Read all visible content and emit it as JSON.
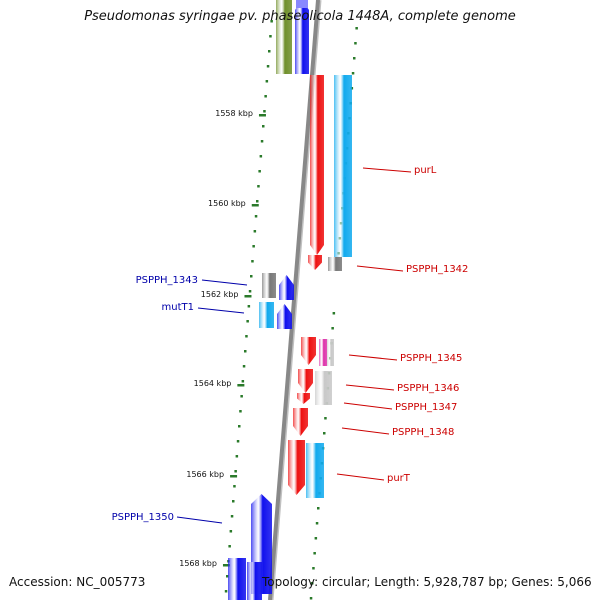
{
  "title": "Pseudomonas syringae pv. phaseolicola 1448A, complete genome",
  "footer": {
    "accession": "Accession: NC_005773",
    "topology": "Topology: circular; Length: 5,928,787 bp; Genes: 5,066"
  },
  "ruler": {
    "tick_labels": [
      "1558 kbp",
      "1560 kbp",
      "1562 kbp",
      "1564 kbp",
      "1566 kbp",
      "1568 kbp"
    ]
  },
  "colors": {
    "reverse_strand_label": "#cc0000",
    "forward_strand_label": "#0000aa",
    "backbone": "#888888",
    "tick": "#2a7a2a",
    "red_gene": "#ee1111",
    "blue_gene": "#1010ee",
    "cyan_gene": "#11aaee",
    "gray_gene": "#777777",
    "olive_gene": "#6f8f2a",
    "magenta_gene": "#dd33aa",
    "light_gray_gene": "#c8c8c8"
  },
  "gene_labels": {
    "red": [
      "purL",
      "PSPPH_1342",
      "PSPPH_1345",
      "PSPPH_1346",
      "PSPPH_1347",
      "PSPPH_1348",
      "purT"
    ],
    "blue": [
      "PSPPH_1343",
      "mutT1",
      "PSPPH_1350"
    ]
  }
}
